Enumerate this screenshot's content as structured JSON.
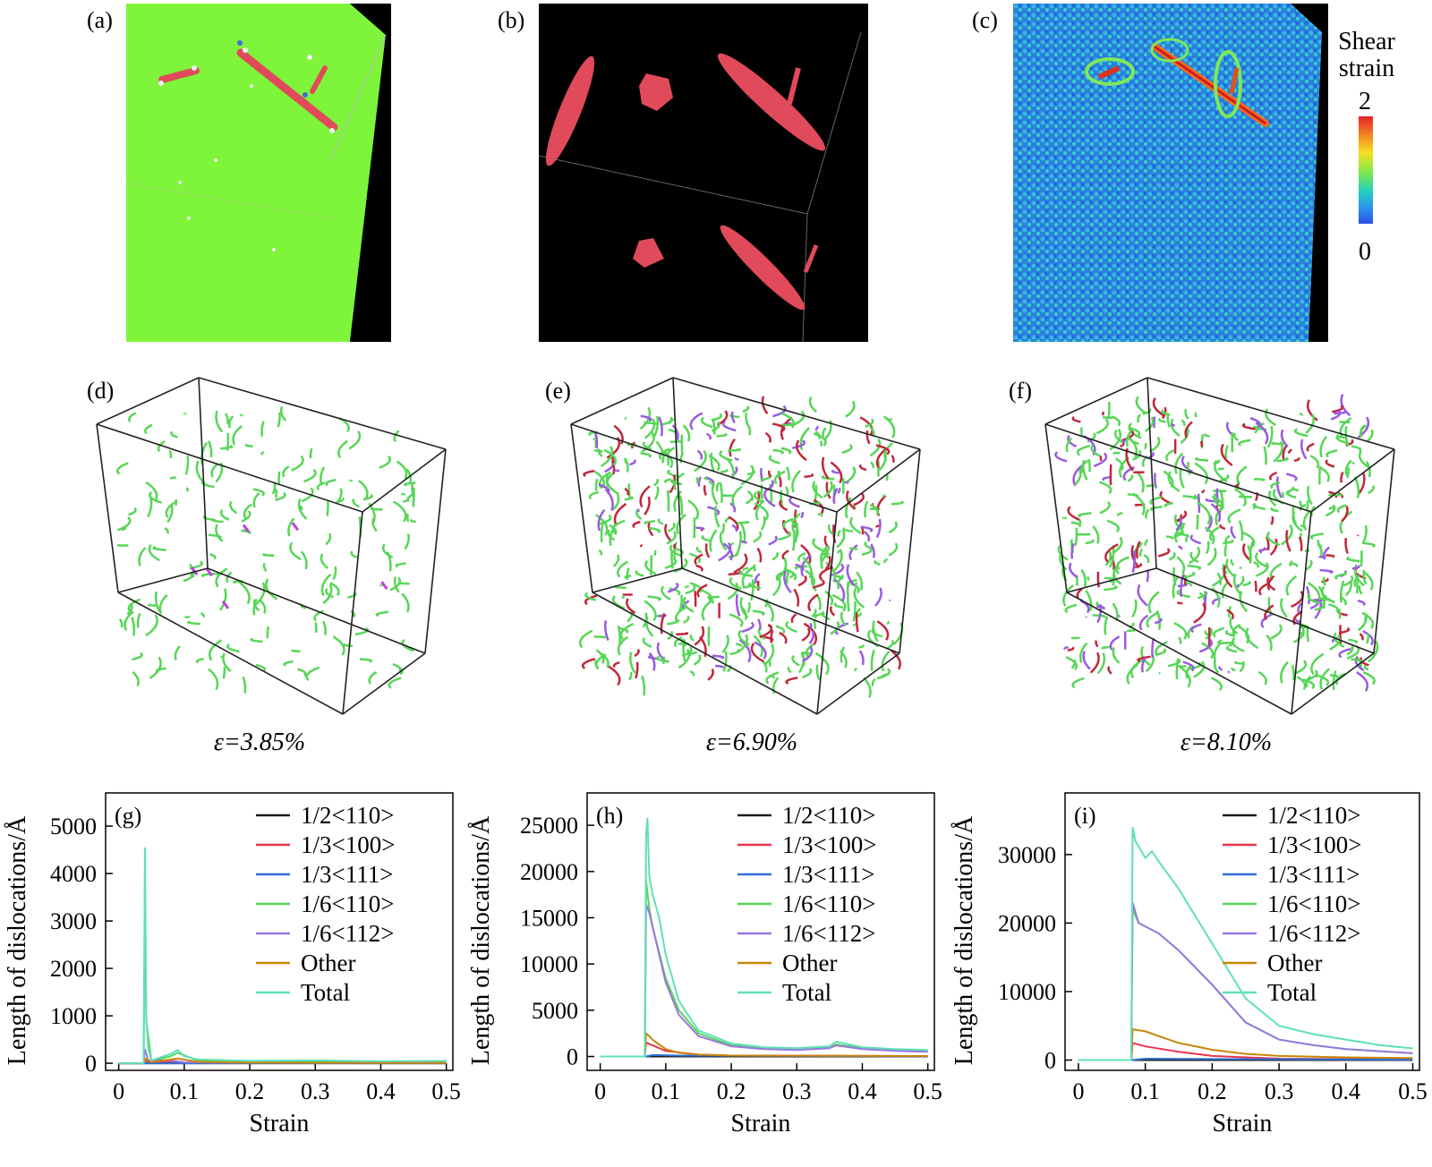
{
  "panels_top": [
    {
      "label": "(a)"
    },
    {
      "label": "(b)"
    },
    {
      "label": "(c)"
    }
  ],
  "colorbar": {
    "title_line1": "Shear",
    "title_line2": "strain",
    "max_label": "2",
    "min_label": "0"
  },
  "panels_mid": [
    {
      "label": "(d)",
      "strain_label": "ε=3.85%",
      "density": 0.35
    },
    {
      "label": "(e)",
      "strain_label": "ε=6.90%",
      "density": 1.0
    },
    {
      "label": "(f)",
      "strain_label": "ε=8.10%",
      "density": 1.0
    }
  ],
  "legend": [
    {
      "name": "1/2<110>",
      "color": "#1a1a1a"
    },
    {
      "name": "1/3<100>",
      "color": "#e8344e"
    },
    {
      "name": "1/3<111>",
      "color": "#2f6fd6"
    },
    {
      "name": "1/6<110>",
      "color": "#57d657"
    },
    {
      "name": "1/6<112>",
      "color": "#9a77e0"
    },
    {
      "name": "Other",
      "color": "#c8860a"
    },
    {
      "name": "Total",
      "color": "#5fe0b8"
    }
  ],
  "chart_data": [
    {
      "type": "line",
      "panel_label": "(g)",
      "xlabel": "Strain",
      "ylabel": "Length of dislocations/Å",
      "xlim": [
        -0.02,
        0.51
      ],
      "ylim": [
        -150,
        5700
      ],
      "xticks": [
        "0",
        "0.1",
        "0.2",
        "0.3",
        "0.4",
        "0.5"
      ],
      "yticks": [
        "0",
        "1000",
        "2000",
        "3000",
        "4000",
        "5000"
      ],
      "series": [
        {
          "name": "1/2<110>",
          "x": [
            0,
            0.5
          ],
          "y": [
            0,
            0
          ]
        },
        {
          "name": "1/3<100>",
          "x": [
            0,
            0.038,
            0.04,
            0.05,
            0.08,
            0.1,
            0.2,
            0.5
          ],
          "y": [
            0,
            0,
            60,
            10,
            40,
            10,
            5,
            0
          ]
        },
        {
          "name": "1/3<111>",
          "x": [
            0,
            0.5
          ],
          "y": [
            0,
            0
          ]
        },
        {
          "name": "1/6<110>",
          "x": [
            0,
            0.038,
            0.04,
            0.042,
            0.05,
            0.08,
            0.09,
            0.12,
            0.2,
            0.3,
            0.5
          ],
          "y": [
            0,
            0,
            3900,
            900,
            40,
            150,
            220,
            60,
            30,
            40,
            20
          ]
        },
        {
          "name": "1/6<112>",
          "x": [
            0,
            0.038,
            0.04,
            0.045,
            0.08,
            0.1,
            0.2,
            0.5
          ],
          "y": [
            0,
            0,
            300,
            60,
            60,
            20,
            10,
            5
          ]
        },
        {
          "name": "Other",
          "x": [
            0,
            0.038,
            0.04,
            0.05,
            0.08,
            0.09,
            0.12,
            0.2,
            0.5
          ],
          "y": [
            0,
            0,
            100,
            20,
            80,
            100,
            30,
            10,
            5
          ]
        },
        {
          "name": "Total",
          "x": [
            0,
            0.038,
            0.039,
            0.04,
            0.042,
            0.045,
            0.05,
            0.08,
            0.09,
            0.1,
            0.12,
            0.2,
            0.3,
            0.4,
            0.5
          ],
          "y": [
            0,
            0,
            2000,
            4550,
            1000,
            300,
            60,
            200,
            280,
            150,
            80,
            50,
            60,
            40,
            50
          ]
        }
      ]
    },
    {
      "type": "line",
      "panel_label": "(h)",
      "xlabel": "Strain",
      "ylabel": "Length of dislocations/Å",
      "xlim": [
        -0.02,
        0.51
      ],
      "ylim": [
        -1500,
        28500
      ],
      "xticks": [
        "0",
        "0.1",
        "0.2",
        "0.3",
        "0.4",
        "0.5"
      ],
      "yticks": [
        "0",
        "5000",
        "10000",
        "15000",
        "20000",
        "25000"
      ],
      "series": [
        {
          "name": "1/2<110>",
          "x": [
            0,
            0.5
          ],
          "y": [
            0,
            0
          ]
        },
        {
          "name": "1/3<100>",
          "x": [
            0,
            0.068,
            0.07,
            0.08,
            0.1,
            0.15,
            0.2,
            0.5
          ],
          "y": [
            0,
            0,
            1500,
            1200,
            600,
            200,
            100,
            50
          ]
        },
        {
          "name": "1/3<111>",
          "x": [
            0,
            0.07,
            0.08,
            0.12,
            0.5
          ],
          "y": [
            0,
            0,
            150,
            100,
            20
          ]
        },
        {
          "name": "1/6<110>",
          "x": [
            0,
            0.068,
            0.07,
            0.075,
            0.08,
            0.1,
            0.12,
            0.15,
            0.2,
            0.25,
            0.3,
            0.35,
            0.36,
            0.4,
            0.45,
            0.5
          ],
          "y": [
            0,
            0,
            19000,
            16000,
            14000,
            8500,
            5000,
            2500,
            1200,
            900,
            800,
            1000,
            1300,
            900,
            700,
            600
          ]
        },
        {
          "name": "1/6<112>",
          "x": [
            0,
            0.068,
            0.07,
            0.075,
            0.08,
            0.1,
            0.12,
            0.15,
            0.2,
            0.25,
            0.3,
            0.35,
            0.36,
            0.4,
            0.45,
            0.5
          ],
          "y": [
            0,
            0,
            16500,
            15500,
            14000,
            8000,
            4500,
            2200,
            1100,
            800,
            700,
            900,
            1200,
            800,
            600,
            500
          ]
        },
        {
          "name": "Other",
          "x": [
            0,
            0.068,
            0.07,
            0.075,
            0.08,
            0.1,
            0.12,
            0.15,
            0.2,
            0.5
          ],
          "y": [
            0,
            0,
            2500,
            2200,
            1800,
            800,
            400,
            200,
            100,
            50
          ]
        },
        {
          "name": "Total",
          "x": [
            0,
            0.068,
            0.07,
            0.072,
            0.075,
            0.08,
            0.09,
            0.1,
            0.12,
            0.15,
            0.2,
            0.25,
            0.3,
            0.35,
            0.36,
            0.4,
            0.45,
            0.5
          ],
          "y": [
            0,
            0,
            24000,
            25800,
            19500,
            17500,
            15000,
            11000,
            6000,
            2800,
            1400,
            1000,
            900,
            1100,
            1600,
            1000,
            800,
            700
          ]
        }
      ]
    },
    {
      "type": "line",
      "panel_label": "(i)",
      "xlabel": "Strain",
      "ylabel": "Length of dislocations/Å",
      "xlim": [
        -0.02,
        0.51
      ],
      "ylim": [
        -1500,
        39000
      ],
      "xticks": [
        "0",
        "0.1",
        "0.2",
        "0.3",
        "0.4",
        "0.5"
      ],
      "yticks": [
        "0",
        "10000",
        "20000",
        "30000"
      ],
      "series": [
        {
          "name": "1/2<110>",
          "x": [
            0,
            0.5
          ],
          "y": [
            0,
            0
          ]
        },
        {
          "name": "1/3<100>",
          "x": [
            0,
            0.079,
            0.081,
            0.1,
            0.15,
            0.2,
            0.3,
            0.5
          ],
          "y": [
            0,
            0,
            2500,
            2000,
            1200,
            600,
            200,
            100
          ]
        },
        {
          "name": "1/3<111>",
          "x": [
            0,
            0.08,
            0.1,
            0.2,
            0.5
          ],
          "y": [
            0,
            0,
            200,
            150,
            50
          ]
        },
        {
          "name": "1/6<110>",
          "x": [
            0,
            0.079,
            0.081,
            0.09,
            0.1,
            0.12,
            0.15,
            0.2,
            0.25,
            0.3,
            0.35,
            0.4,
            0.45,
            0.5
          ],
          "y": [
            0,
            0,
            22000,
            20000,
            19500,
            18500,
            16000,
            11000,
            5500,
            3000,
            2200,
            1600,
            1300,
            1000
          ]
        },
        {
          "name": "1/6<112>",
          "x": [
            0,
            0.079,
            0.081,
            0.09,
            0.1,
            0.12,
            0.15,
            0.2,
            0.25,
            0.3,
            0.35,
            0.4,
            0.45,
            0.5
          ],
          "y": [
            0,
            0,
            23000,
            20000,
            19500,
            18500,
            16000,
            11000,
            5500,
            3000,
            2200,
            1600,
            1300,
            1000
          ]
        },
        {
          "name": "Other",
          "x": [
            0,
            0.079,
            0.081,
            0.1,
            0.12,
            0.15,
            0.2,
            0.25,
            0.3,
            0.4,
            0.5
          ],
          "y": [
            0,
            0,
            4500,
            4200,
            3500,
            2500,
            1500,
            900,
            600,
            400,
            300
          ]
        },
        {
          "name": "Total",
          "x": [
            0,
            0.079,
            0.081,
            0.085,
            0.1,
            0.11,
            0.12,
            0.15,
            0.2,
            0.25,
            0.3,
            0.35,
            0.4,
            0.45,
            0.5
          ],
          "y": [
            0,
            0,
            34000,
            32000,
            29500,
            30500,
            29000,
            25000,
            17000,
            9000,
            5000,
            3800,
            3000,
            2200,
            1700
          ]
        }
      ]
    }
  ]
}
